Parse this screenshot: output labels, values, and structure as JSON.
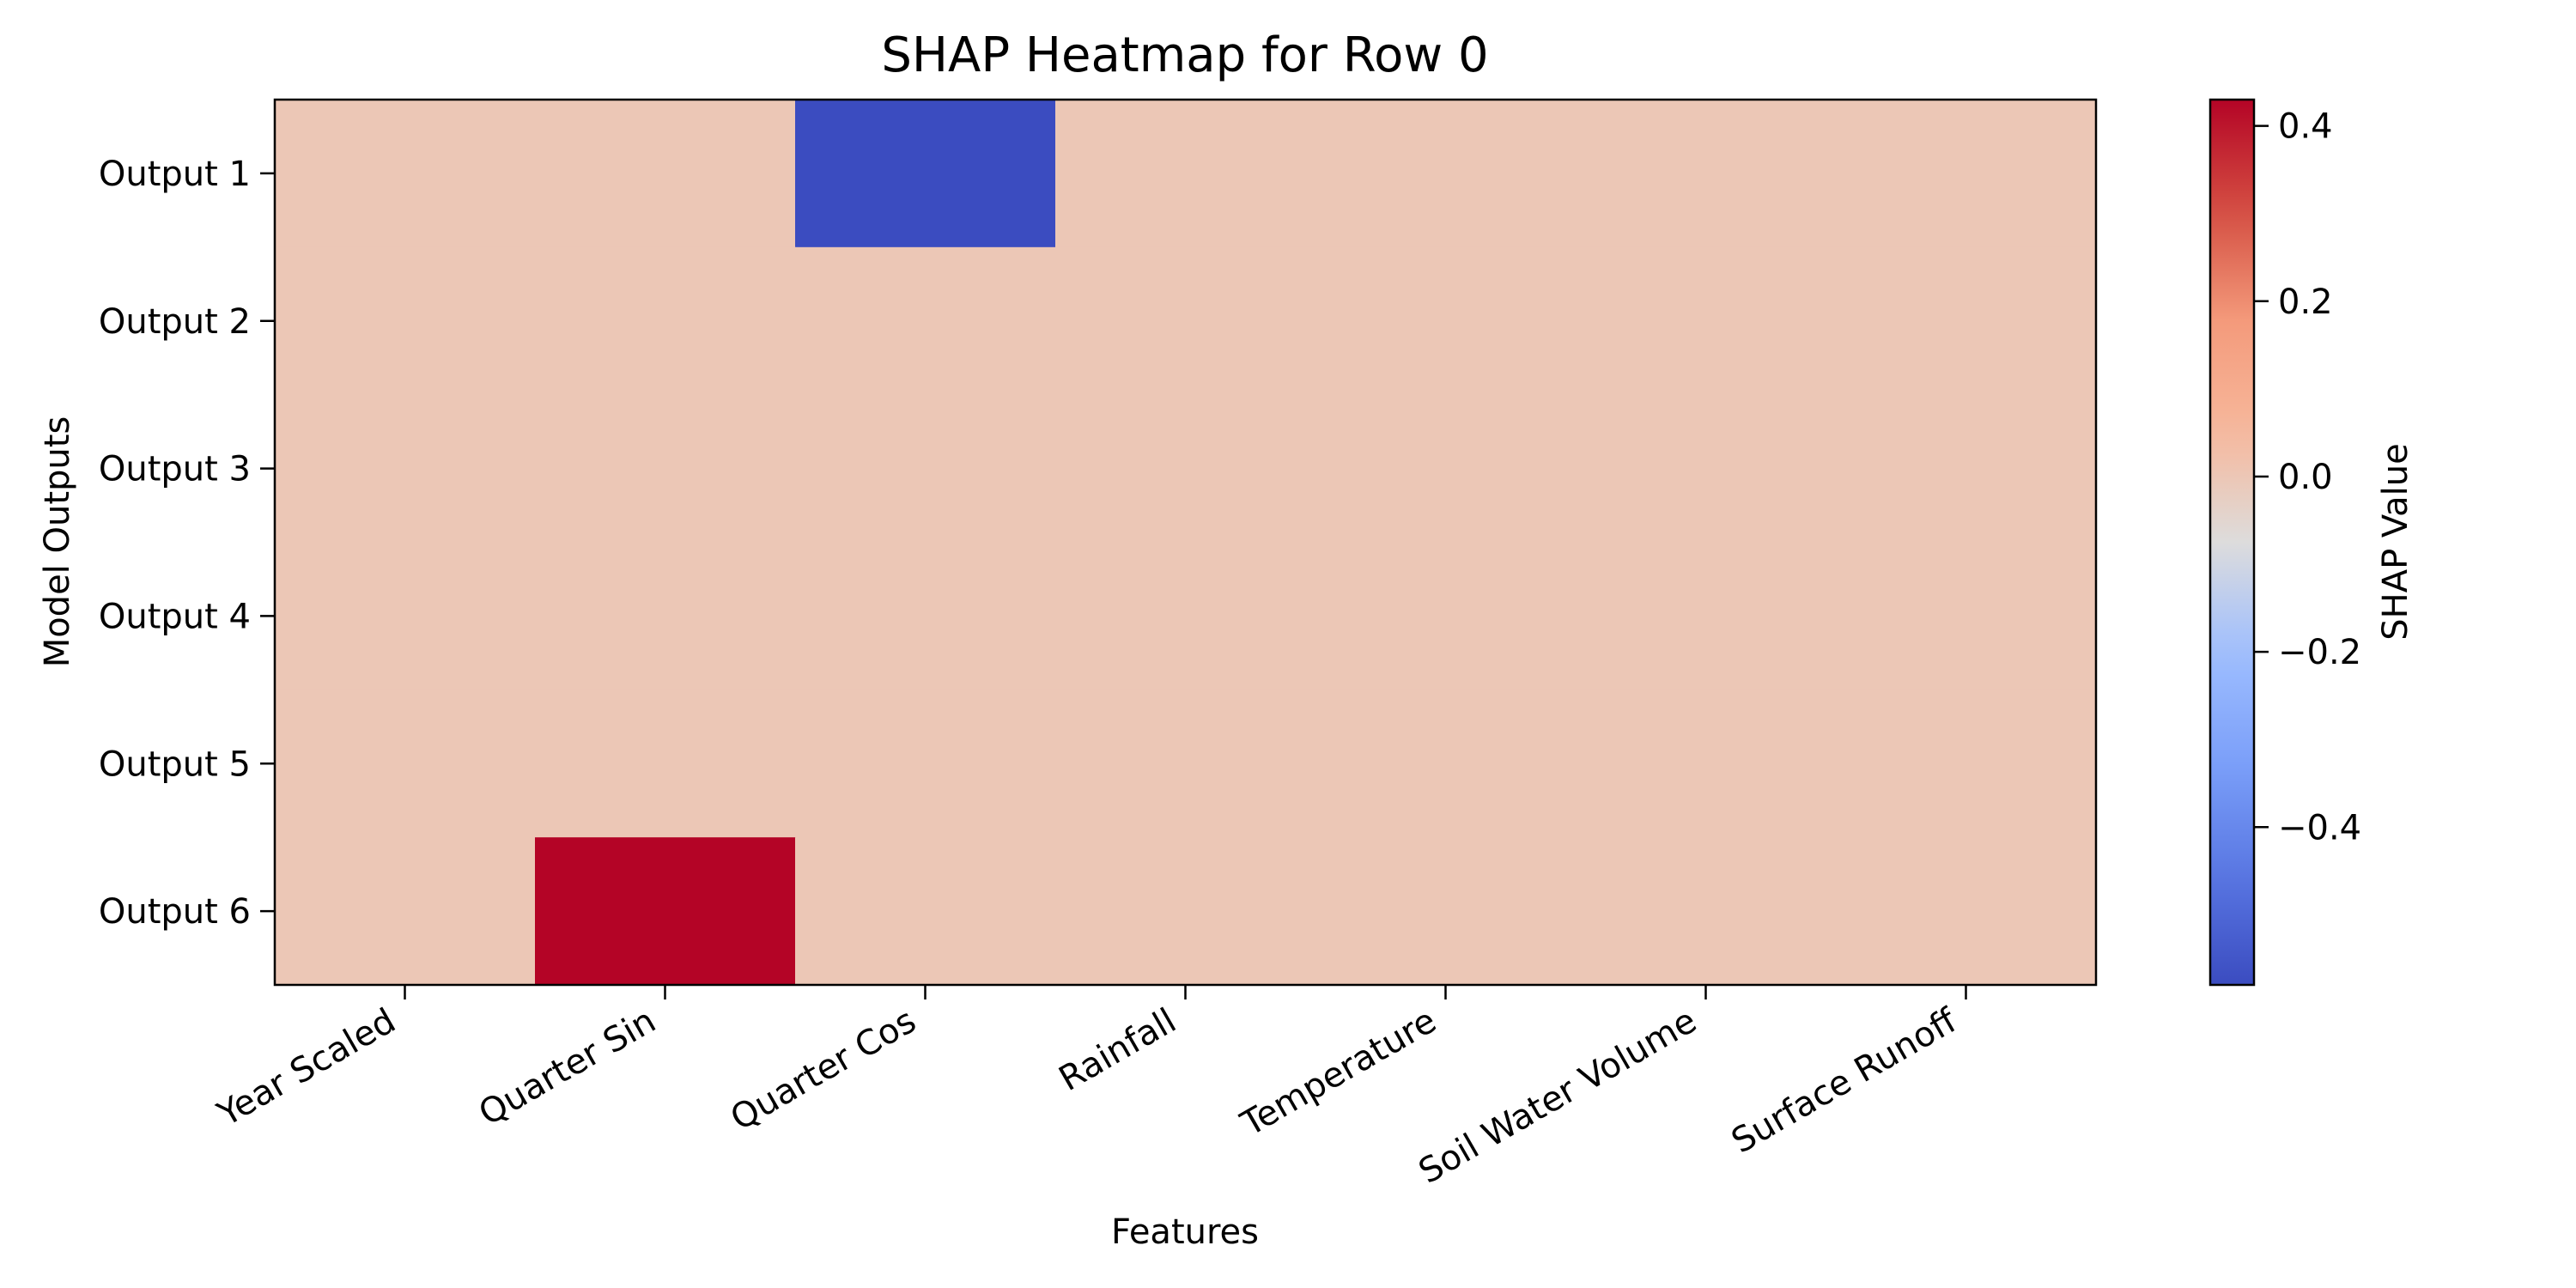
{
  "chart_data": {
    "type": "heatmap",
    "title": "SHAP Heatmap for Row 0",
    "xlabel": "Features",
    "ylabel": "Model Outputs",
    "x_categories": [
      "Year Scaled",
      "Quarter Sin",
      "Quarter Cos",
      "Rainfall",
      "Temperature",
      "Soil Water Volume",
      "Surface Runoff"
    ],
    "y_categories": [
      "Output 1",
      "Output 2",
      "Output 3",
      "Output 4",
      "Output 5",
      "Output 6"
    ],
    "values": [
      [
        0.0,
        0.0,
        -0.58,
        0.0,
        0.0,
        0.0,
        0.0
      ],
      [
        0.0,
        0.0,
        0.0,
        0.0,
        0.0,
        0.0,
        0.0
      ],
      [
        0.0,
        0.0,
        0.0,
        0.0,
        0.0,
        0.0,
        0.0
      ],
      [
        0.0,
        0.0,
        0.0,
        0.0,
        0.0,
        0.0,
        0.0
      ],
      [
        0.0,
        0.0,
        0.0,
        0.0,
        0.0,
        0.0,
        0.0
      ],
      [
        0.0,
        0.43,
        0.0,
        0.0,
        0.0,
        0.0,
        0.0
      ]
    ],
    "colorbar": {
      "label": "SHAP Value",
      "colormap": "coolwarm",
      "range": [
        -0.58,
        0.43
      ],
      "ticks": [
        0.4,
        0.2,
        0.0,
        -0.2,
        -0.4
      ],
      "tick_labels": [
        "0.4",
        "0.2",
        "0.0",
        "−0.2",
        "−0.4"
      ]
    },
    "colormap_stops": [
      {
        "t": 0.0,
        "color": "#3b4cc0"
      },
      {
        "t": 0.125,
        "color": "#5977e3"
      },
      {
        "t": 0.25,
        "color": "#7b9ff9"
      },
      {
        "t": 0.375,
        "color": "#9ebeff"
      },
      {
        "t": 0.5,
        "color": "#dddcdc"
      },
      {
        "t": 0.625,
        "color": "#f7b89c"
      },
      {
        "t": 0.75,
        "color": "#f49a7b"
      },
      {
        "t": 0.875,
        "color": "#d44e41"
      },
      {
        "t": 1.0,
        "color": "#b40426"
      }
    ]
  }
}
